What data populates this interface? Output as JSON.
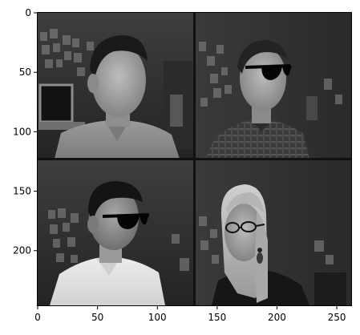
{
  "figure": {
    "type": "image-grid",
    "grid": {
      "rows": 2,
      "cols": 2
    },
    "x_axis": {
      "ticks": [
        "0",
        "50",
        "100",
        "150",
        "200",
        "250"
      ],
      "range": [
        0,
        262
      ]
    },
    "y_axis": {
      "ticks": [
        "0",
        "50",
        "100",
        "150",
        "200"
      ],
      "range": [
        0,
        246
      ]
    },
    "panels": [
      {
        "icon": "person-portrait-icon",
        "subject": "man-collared-shirt-facing-right"
      },
      {
        "icon": "person-portrait-icon",
        "subject": "man-sunglasses-plaid-shirt-facing-right"
      },
      {
        "icon": "person-portrait-icon",
        "subject": "man-sunglasses-white-shirt-facing-right"
      },
      {
        "icon": "person-portrait-icon",
        "subject": "woman-glasses-long-hair-facing-left"
      }
    ],
    "colors": {
      "background": "#ffffff",
      "axis": "#000000",
      "grid_border": "#111111"
    }
  }
}
